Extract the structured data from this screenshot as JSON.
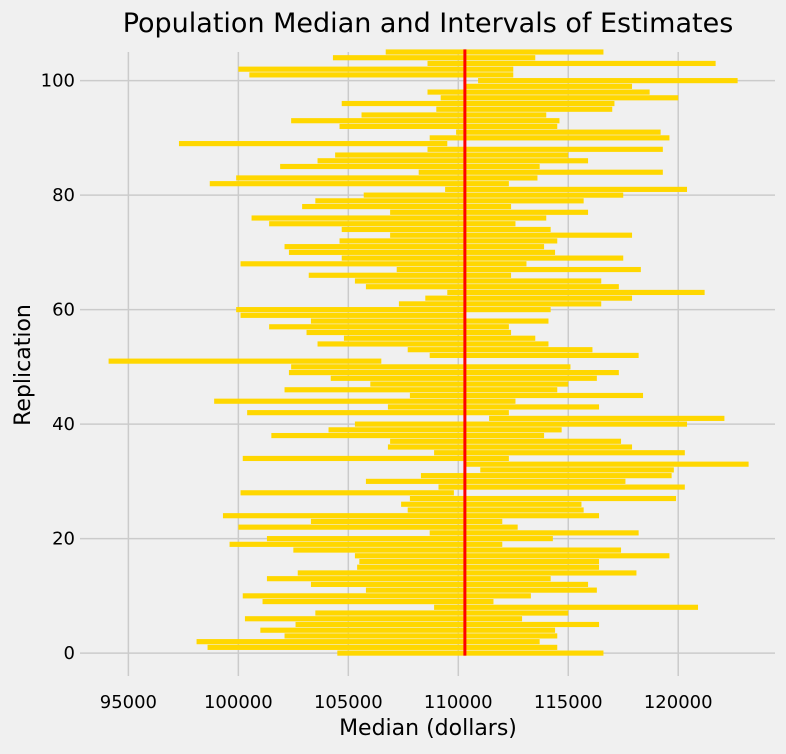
{
  "chart_data": {
    "type": "bar",
    "orientation": "horizontal",
    "title": "Population Median and Intervals of Estimates",
    "xlabel": "Median (dollars)",
    "ylabel": "Replication",
    "xlim": [
      92800,
      124400
    ],
    "ylim": [
      -4,
      105
    ],
    "xticks": [
      95000,
      100000,
      105000,
      110000,
      115000,
      120000
    ],
    "yticks": [
      0,
      20,
      40,
      60,
      80,
      100
    ],
    "grid": true,
    "reference_line": {
      "x": 110300,
      "color": "#ff0000"
    },
    "bar_color": "#ffd700",
    "intervals": [
      [
        104500,
        116600
      ],
      [
        98600,
        114500
      ],
      [
        98100,
        113700
      ],
      [
        102100,
        114500
      ],
      [
        101000,
        114400
      ],
      [
        102600,
        116400
      ],
      [
        100300,
        112900
      ],
      [
        103500,
        115000
      ],
      [
        108900,
        120900
      ],
      [
        101100,
        111600
      ],
      [
        100200,
        113300
      ],
      [
        105800,
        116300
      ],
      [
        103300,
        115900
      ],
      [
        101300,
        114200
      ],
      [
        102700,
        118100
      ],
      [
        105400,
        116400
      ],
      [
        105500,
        116400
      ],
      [
        105300,
        119600
      ],
      [
        102500,
        117400
      ],
      [
        99600,
        112000
      ],
      [
        101300,
        114300
      ],
      [
        108700,
        118200
      ],
      [
        100000,
        112700
      ],
      [
        103300,
        112000
      ],
      [
        99300,
        116400
      ],
      [
        107700,
        115700
      ],
      [
        107400,
        115600
      ],
      [
        107800,
        119900
      ],
      [
        100100,
        109800
      ],
      [
        109100,
        120300
      ],
      [
        105800,
        117600
      ],
      [
        108300,
        119700
      ],
      [
        111000,
        119800
      ],
      [
        110300,
        123200
      ],
      [
        100200,
        112300
      ],
      [
        108900,
        120300
      ],
      [
        106800,
        117900
      ],
      [
        106900,
        117400
      ],
      [
        101500,
        113900
      ],
      [
        104100,
        114700
      ],
      [
        105300,
        120400
      ],
      [
        111400,
        122100
      ],
      [
        100400,
        112300
      ],
      [
        106800,
        116400
      ],
      [
        98900,
        112600
      ],
      [
        107800,
        118400
      ],
      [
        102100,
        114500
      ],
      [
        106000,
        115000
      ],
      [
        104200,
        116300
      ],
      [
        102300,
        117300
      ],
      [
        102400,
        115100
      ],
      [
        94100,
        106500
      ],
      [
        108700,
        118200
      ],
      [
        107700,
        116100
      ],
      [
        103600,
        114100
      ],
      [
        104800,
        113500
      ],
      [
        103100,
        112400
      ],
      [
        101400,
        112300
      ],
      [
        103300,
        114100
      ],
      [
        100100,
        110300
      ],
      [
        99900,
        114200
      ],
      [
        107300,
        116500
      ],
      [
        108500,
        117900
      ],
      [
        109500,
        121200
      ],
      [
        105800,
        117300
      ],
      [
        105300,
        116500
      ],
      [
        103200,
        112400
      ],
      [
        107200,
        118300
      ],
      [
        100100,
        113100
      ],
      [
        104700,
        117500
      ],
      [
        102300,
        114400
      ],
      [
        102100,
        113900
      ],
      [
        104600,
        114500
      ],
      [
        106900,
        117900
      ],
      [
        104700,
        114200
      ],
      [
        101400,
        112600
      ],
      [
        100600,
        114000
      ],
      [
        106900,
        115900
      ],
      [
        102900,
        112400
      ],
      [
        103500,
        115700
      ],
      [
        105700,
        117500
      ],
      [
        109400,
        120400
      ],
      [
        98700,
        112300
      ],
      [
        99900,
        113600
      ],
      [
        108200,
        119300
      ],
      [
        101900,
        113700
      ],
      [
        103600,
        115900
      ],
      [
        104400,
        115000
      ],
      [
        108600,
        119300
      ],
      [
        97300,
        109500
      ],
      [
        108700,
        119600
      ],
      [
        109900,
        119200
      ],
      [
        104600,
        114500
      ],
      [
        102400,
        114600
      ],
      [
        105600,
        114000
      ],
      [
        109000,
        117000
      ],
      [
        104700,
        117100
      ],
      [
        109200,
        120000
      ],
      [
        108600,
        118700
      ],
      [
        110300,
        117900
      ],
      [
        110900,
        122700
      ],
      [
        100500,
        112500
      ],
      [
        100000,
        112500
      ],
      [
        108600,
        121700
      ],
      [
        104300,
        113500
      ],
      [
        106700,
        116600
      ]
    ]
  }
}
